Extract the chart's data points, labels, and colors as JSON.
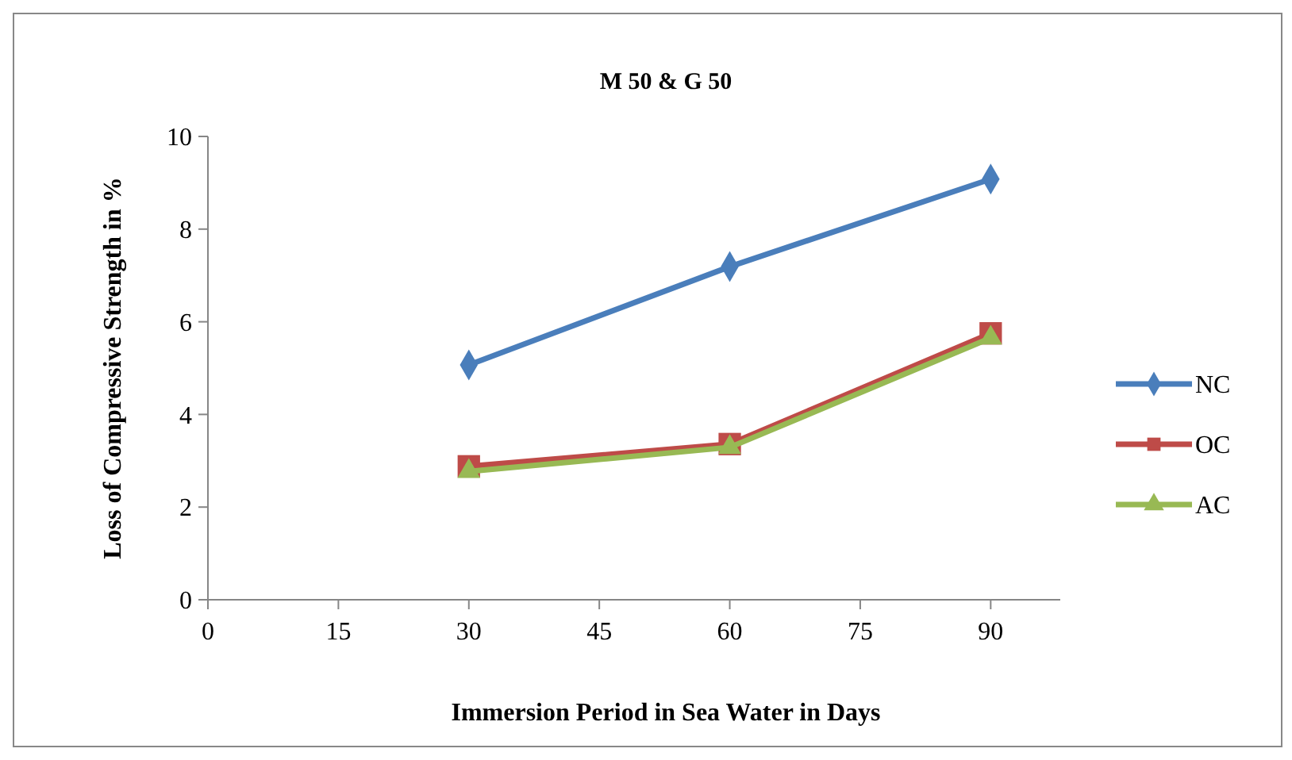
{
  "chart_data": {
    "type": "line",
    "title": "M 50 & G 50",
    "xlabel": "Immersion Period in Sea Water in Days",
    "ylabel": "Loss of Compressive Strength in %",
    "x": [
      30,
      60,
      90
    ],
    "xlim": [
      0,
      98
    ],
    "xticks": [
      0,
      15,
      30,
      45,
      60,
      75,
      90
    ],
    "ylim": [
      0,
      10
    ],
    "yticks": [
      0,
      2,
      4,
      6,
      8,
      10
    ],
    "grid": false,
    "legend": "right",
    "series": [
      {
        "name": "NC",
        "color": "#4a7ebb",
        "values": [
          5.07,
          7.19,
          9.08
        ],
        "marker": "diamond"
      },
      {
        "name": "OC",
        "color": "#be4b48",
        "values": [
          2.88,
          3.36,
          5.75
        ],
        "marker": "square"
      },
      {
        "name": "AC",
        "color": "#98b954",
        "values": [
          2.77,
          3.29,
          5.65
        ],
        "marker": "triangle"
      }
    ]
  }
}
